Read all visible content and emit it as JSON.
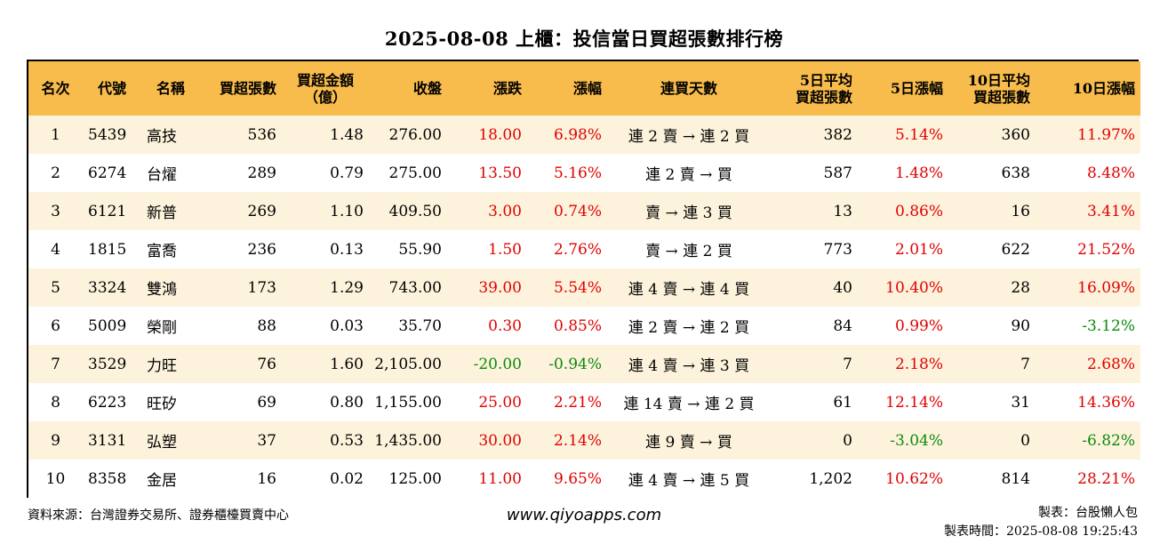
{
  "title": "2025-08-08 上櫃：投信當日買超張數排行榜",
  "colors": {
    "header_bg": "#f8bc4c",
    "row_alt": "#fdf3dc",
    "up": "#e00000",
    "down": "#0a8a0a"
  },
  "columns": [
    "名次",
    "代號",
    "名稱",
    "買超張數",
    "買超金額(億)",
    "收盤",
    "漲跌",
    "漲幅",
    "連買天數",
    "5日平均買超張數",
    "5日漲幅",
    "10日平均買超張數",
    "10日漲幅"
  ],
  "header": {
    "rank": "名次",
    "code": "代號",
    "name": "名稱",
    "net_buy_lots": "買超張數",
    "amount_line1": "買超金額",
    "amount_line2": "（億）",
    "close": "收盤",
    "change": "漲跌",
    "pct": "漲幅",
    "streak": "連買天數",
    "avg5_line1": "5日平均",
    "avg5_line2": "買超張數",
    "pct5": "5日漲幅",
    "avg10_line1": "10日平均",
    "avg10_line2": "買超張數",
    "pct10": "10日漲幅"
  },
  "rows": [
    {
      "rank": "1",
      "code": "5439",
      "name": "高技",
      "lots": "536",
      "amount": "1.48",
      "close": "276.00",
      "change": "18.00",
      "pct": "6.98%",
      "streak": "連 2 賣 → 連 2 買",
      "avg5": "382",
      "pct5": "5.14%",
      "avg10": "360",
      "pct10": "11.97%"
    },
    {
      "rank": "2",
      "code": "6274",
      "name": "台燿",
      "lots": "289",
      "amount": "0.79",
      "close": "275.00",
      "change": "13.50",
      "pct": "5.16%",
      "streak": "連 2 賣 → 買",
      "avg5": "587",
      "pct5": "1.48%",
      "avg10": "638",
      "pct10": "8.48%"
    },
    {
      "rank": "3",
      "code": "6121",
      "name": "新普",
      "lots": "269",
      "amount": "1.10",
      "close": "409.50",
      "change": "3.00",
      "pct": "0.74%",
      "streak": "賣 → 連 3 買",
      "avg5": "13",
      "pct5": "0.86%",
      "avg10": "16",
      "pct10": "3.41%"
    },
    {
      "rank": "4",
      "code": "1815",
      "name": "富喬",
      "lots": "236",
      "amount": "0.13",
      "close": "55.90",
      "change": "1.50",
      "pct": "2.76%",
      "streak": "賣 → 連 2 買",
      "avg5": "773",
      "pct5": "2.01%",
      "avg10": "622",
      "pct10": "21.52%"
    },
    {
      "rank": "5",
      "code": "3324",
      "name": "雙鴻",
      "lots": "173",
      "amount": "1.29",
      "close": "743.00",
      "change": "39.00",
      "pct": "5.54%",
      "streak": "連 4 賣 → 連 4 買",
      "avg5": "40",
      "pct5": "10.40%",
      "avg10": "28",
      "pct10": "16.09%"
    },
    {
      "rank": "6",
      "code": "5009",
      "name": "榮剛",
      "lots": "88",
      "amount": "0.03",
      "close": "35.70",
      "change": "0.30",
      "pct": "0.85%",
      "streak": "連 2 賣 → 連 2 買",
      "avg5": "84",
      "pct5": "0.99%",
      "avg10": "90",
      "pct10": "-3.12%"
    },
    {
      "rank": "7",
      "code": "3529",
      "name": "力旺",
      "lots": "76",
      "amount": "1.60",
      "close": "2,105.00",
      "change": "-20.00",
      "pct": "-0.94%",
      "streak": "連 4 賣 → 連 3 買",
      "avg5": "7",
      "pct5": "2.18%",
      "avg10": "7",
      "pct10": "2.68%"
    },
    {
      "rank": "8",
      "code": "6223",
      "name": "旺矽",
      "lots": "69",
      "amount": "0.80",
      "close": "1,155.00",
      "change": "25.00",
      "pct": "2.21%",
      "streak": "連 14 賣 → 連 2 買",
      "avg5": "61",
      "pct5": "12.14%",
      "avg10": "31",
      "pct10": "14.36%"
    },
    {
      "rank": "9",
      "code": "3131",
      "name": "弘塑",
      "lots": "37",
      "amount": "0.53",
      "close": "1,435.00",
      "change": "30.00",
      "pct": "2.14%",
      "streak": "連 9 賣 → 買",
      "avg5": "0",
      "pct5": "-3.04%",
      "avg10": "0",
      "pct10": "-6.82%"
    },
    {
      "rank": "10",
      "code": "8358",
      "name": "金居",
      "lots": "16",
      "amount": "0.02",
      "close": "125.00",
      "change": "11.00",
      "pct": "9.65%",
      "streak": "連 4 賣 → 連 5 買",
      "avg5": "1,202",
      "pct5": "10.62%",
      "avg10": "814",
      "pct10": "28.21%"
    }
  ],
  "footer": {
    "source": "資料來源：台灣證券交易所、證券櫃檯買賣中心",
    "website": "www.qiyoapps.com",
    "maker": "製表：台股懶人包",
    "made_time": "製表時間：2025-08-08 19:25:43"
  }
}
